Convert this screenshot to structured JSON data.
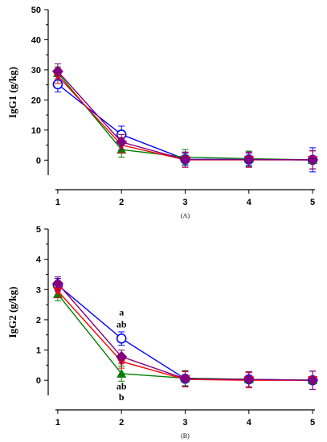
{
  "chart_data": [
    {
      "type": "line",
      "panel_label": "(A)",
      "ylabel": "IgG1 (g/kg)",
      "xlabel": "",
      "x": [
        1,
        2,
        3,
        4,
        5
      ],
      "ylim": [
        -5,
        50
      ],
      "yticks": [
        0,
        10,
        20,
        30,
        40,
        50
      ],
      "xticks": [
        1,
        2,
        3,
        4,
        5
      ],
      "grid": false,
      "legend": "none",
      "series": [
        {
          "color": "#0000ff",
          "marker": "circle-open",
          "values": [
            25.2,
            8.5,
            0.3,
            0.2,
            0.1
          ],
          "errors": [
            2.5,
            2.8,
            2.0,
            2.0,
            4.0
          ]
        },
        {
          "color": "#008000",
          "marker": "triangle-up",
          "values": [
            29.0,
            3.5,
            1.0,
            0.5,
            0.1
          ],
          "errors": [
            2.0,
            2.5,
            2.5,
            2.5,
            3.0
          ]
        },
        {
          "color": "#ff0000",
          "marker": "triangle-down",
          "values": [
            28.0,
            5.0,
            0.1,
            0.1,
            0.1
          ],
          "errors": [
            2.5,
            2.5,
            2.5,
            2.5,
            3.0
          ]
        },
        {
          "color": "#800080",
          "marker": "diamond",
          "values": [
            29.5,
            6.0,
            0.2,
            0.2,
            0.1
          ],
          "errors": [
            2.5,
            2.5,
            2.5,
            2.5,
            3.0
          ]
        }
      ],
      "annotations": []
    },
    {
      "type": "line",
      "panel_label": "(B)",
      "ylabel": "IgG2 (g/kg)",
      "xlabel": "",
      "x": [
        1,
        2,
        3,
        4,
        5
      ],
      "ylim": [
        -0.5,
        5
      ],
      "yticks": [
        0,
        1,
        2,
        3,
        4,
        5
      ],
      "xticks": [
        1,
        2,
        3,
        4,
        5
      ],
      "grid": false,
      "legend": "none",
      "series": [
        {
          "color": "#0000ff",
          "marker": "circle-open",
          "values": [
            3.15,
            1.38,
            0.05,
            0.03,
            0.0
          ],
          "errors": [
            0.22,
            0.22,
            0.25,
            0.25,
            0.3
          ]
        },
        {
          "color": "#008000",
          "marker": "triangle-up",
          "values": [
            2.85,
            0.22,
            0.07,
            0.03,
            0.0
          ],
          "errors": [
            0.22,
            0.25,
            0.25,
            0.25,
            0.3
          ]
        },
        {
          "color": "#ff0000",
          "marker": "triangle-down",
          "values": [
            2.95,
            0.62,
            0.03,
            0.0,
            0.0
          ],
          "errors": [
            0.22,
            0.22,
            0.25,
            0.25,
            0.3
          ]
        },
        {
          "color": "#800080",
          "marker": "diamond",
          "values": [
            3.2,
            0.78,
            0.05,
            0.03,
            0.0
          ],
          "errors": [
            0.22,
            0.22,
            0.25,
            0.25,
            0.3
          ]
        }
      ],
      "annotations": [
        {
          "x": 2,
          "y": 2.25,
          "text": "a"
        },
        {
          "x": 2,
          "y": 1.85,
          "text": "ab"
        },
        {
          "x": 2,
          "y": -0.2,
          "text": "ab"
        },
        {
          "x": 2,
          "y": -0.55,
          "text": "b"
        }
      ]
    }
  ]
}
